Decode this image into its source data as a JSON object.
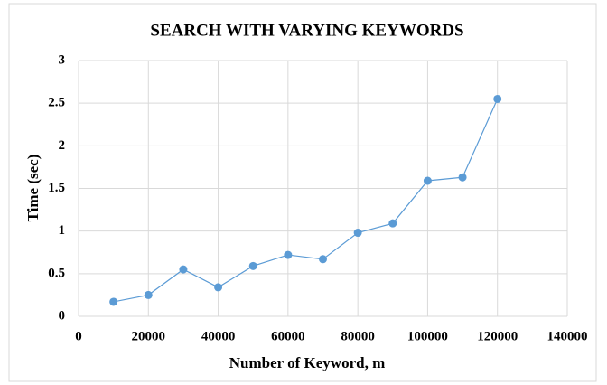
{
  "chart_data": {
    "type": "line",
    "title": "SEARCH WITH VARYING KEYWORDS",
    "xlabel": "Number of Keyword, m",
    "ylabel": "Time (sec)",
    "x": [
      10000,
      20000,
      30000,
      40000,
      50000,
      60000,
      70000,
      80000,
      90000,
      100000,
      110000,
      120000
    ],
    "series": [
      {
        "name": "Time",
        "color": "#5b9bd5",
        "values": [
          0.17,
          0.25,
          0.55,
          0.34,
          0.59,
          0.72,
          0.67,
          0.98,
          1.09,
          1.59,
          1.63,
          2.55
        ]
      }
    ],
    "xlim": [
      0,
      140000
    ],
    "xticks": [
      0,
      20000,
      40000,
      60000,
      80000,
      100000,
      120000,
      140000
    ],
    "ylim": [
      0,
      3
    ],
    "yticks": [
      0,
      0.5,
      1,
      1.5,
      2,
      2.5,
      3
    ],
    "grid": true
  }
}
